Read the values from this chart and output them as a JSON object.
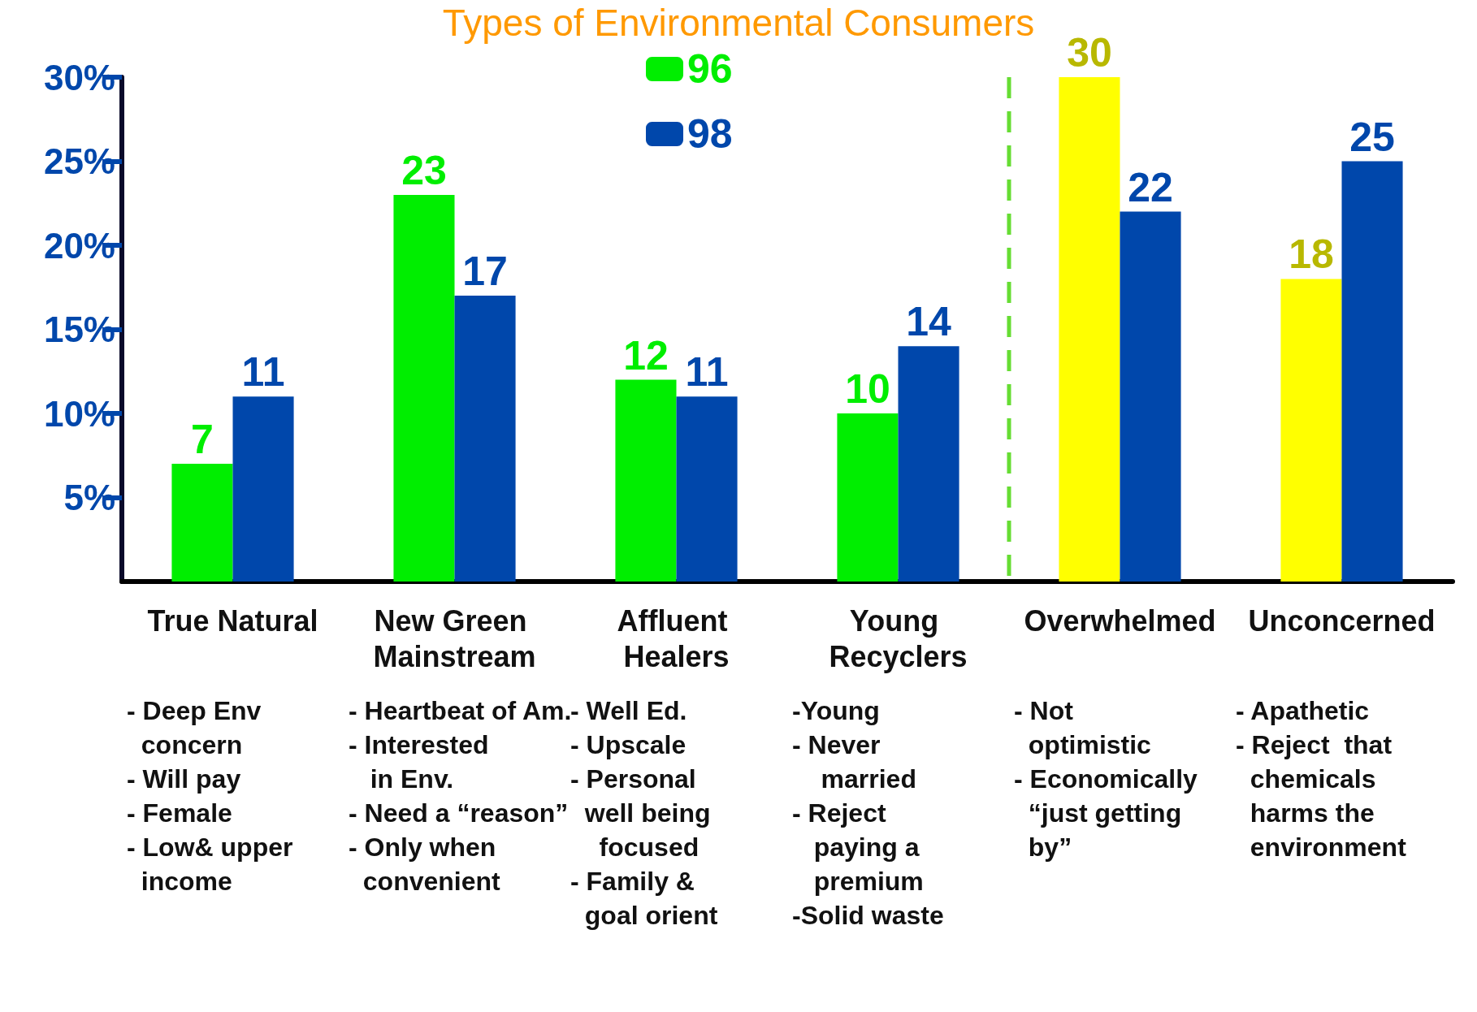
{
  "chart_data": {
    "type": "bar",
    "title": "Types of Environmental Consumers",
    "categories": [
      "True Natural",
      "New Green Mainstream",
      "Affluent Healers",
      "Young Recyclers",
      "Overwhelmed",
      "Unconcerned"
    ],
    "series": [
      {
        "name": "96",
        "color": "#00ee00",
        "colors": [
          "#00ee00",
          "#00ee00",
          "#00ee00",
          "#00ee00",
          "#ffff00",
          "#ffff00"
        ],
        "values": [
          7,
          23,
          12,
          10,
          30,
          18
        ]
      },
      {
        "name": "98",
        "color": "#0047ab",
        "values": [
          11,
          17,
          11,
          14,
          22,
          25
        ]
      }
    ],
    "ylim": [
      0,
      30
    ],
    "yticks": [
      {
        "value": 5,
        "label": "5%"
      },
      {
        "value": 10,
        "label": "10%"
      },
      {
        "value": 15,
        "label": "15%"
      },
      {
        "value": 20,
        "label": "20%"
      },
      {
        "value": 25,
        "label": "25%"
      },
      {
        "value": 30,
        "label": "30%"
      }
    ],
    "data_labels": true,
    "grid": false,
    "legend": "top",
    "annotations": [
      "- Deep Env\n  concern\n- Will pay\n- Female\n- Low& upper\n  income",
      "- Heartbeat of Am.\n- Interested\n   in Env.\n- Need a “reason”\n- Only when\n  convenient",
      "- Well Ed.\n- Upscale\n- Personal\n  well being\n    focused\n- Family &\n  goal orient",
      "-Young\n- Never\n    married\n- Reject\n   paying a\n   premium\n-Solid waste",
      "- Not\n  optimistic\n- Economically\n  “just getting\n  by”",
      "- Apathetic\n- Reject  that\n  chemicals\n  harms the\n  environment"
    ]
  }
}
